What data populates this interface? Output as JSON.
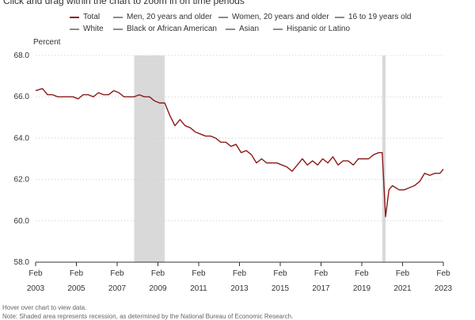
{
  "instruction": "Click and drag within the chart to zoom in on time periods",
  "legend": [
    {
      "label": "Total",
      "color": "#8b1a1a",
      "active": true
    },
    {
      "label": "Men, 20 years and older",
      "color": "#8c8c8c",
      "active": false
    },
    {
      "label": "Women, 20 years and older",
      "color": "#8c8c8c",
      "active": false
    },
    {
      "label": "16 to 19 years old",
      "color": "#8c8c8c",
      "active": false
    },
    {
      "label": "White",
      "color": "#8c8c8c",
      "active": false
    },
    {
      "label": "Black or African American",
      "color": "#8c8c8c",
      "active": false
    },
    {
      "label": "Asian",
      "color": "#8c8c8c",
      "active": false
    },
    {
      "label": "Hispanic or Latino",
      "color": "#8c8c8c",
      "active": false
    }
  ],
  "notes": {
    "hover": "Hover over chart to view data.",
    "recession": "Note: Shaded area represents recession, as determined by the National Bureau of Economic Research."
  },
  "colors": {
    "series": "#8b1a1a",
    "recession": "#d9d9d9",
    "axis": "#333333",
    "grid": "#cccccc",
    "text": "#333333"
  },
  "chart_data": {
    "type": "line",
    "ylabel": "Percent",
    "xlabel": "",
    "ylim": [
      58.0,
      68.0
    ],
    "yticks": [
      "58.0",
      "60.0",
      "62.0",
      "64.0",
      "66.0",
      "68.0"
    ],
    "xlim": [
      "2003-02",
      "2023-02"
    ],
    "xticks": [
      {
        "month": "Feb",
        "year": "2003"
      },
      {
        "month": "Feb",
        "year": "2005"
      },
      {
        "month": "Feb",
        "year": "2007"
      },
      {
        "month": "Feb",
        "year": "2009"
      },
      {
        "month": "Feb",
        "year": "2011"
      },
      {
        "month": "Feb",
        "year": "2013"
      },
      {
        "month": "Feb",
        "year": "2015"
      },
      {
        "month": "Feb",
        "year": "2017"
      },
      {
        "month": "Feb",
        "year": "2019"
      },
      {
        "month": "Feb",
        "year": "2021"
      },
      {
        "month": "Feb",
        "year": "2023"
      }
    ],
    "grid": "horizontal dotted",
    "recessions": [
      {
        "start": "2007-12",
        "end": "2009-06"
      },
      {
        "start": "2020-02",
        "end": "2020-04"
      }
    ],
    "series": [
      {
        "name": "Total",
        "points": [
          [
            "2003-02",
            66.3
          ],
          [
            "2003-06",
            66.4
          ],
          [
            "2003-09",
            66.1
          ],
          [
            "2003-12",
            66.1
          ],
          [
            "2004-03",
            66.0
          ],
          [
            "2004-06",
            66.0
          ],
          [
            "2004-09",
            66.0
          ],
          [
            "2004-12",
            66.0
          ],
          [
            "2005-03",
            65.9
          ],
          [
            "2005-06",
            66.1
          ],
          [
            "2005-09",
            66.1
          ],
          [
            "2005-12",
            66.0
          ],
          [
            "2006-03",
            66.2
          ],
          [
            "2006-06",
            66.1
          ],
          [
            "2006-09",
            66.1
          ],
          [
            "2006-12",
            66.3
          ],
          [
            "2007-03",
            66.2
          ],
          [
            "2007-06",
            66.0
          ],
          [
            "2007-09",
            66.0
          ],
          [
            "2007-12",
            66.0
          ],
          [
            "2008-03",
            66.1
          ],
          [
            "2008-06",
            66.0
          ],
          [
            "2008-09",
            66.0
          ],
          [
            "2008-12",
            65.8
          ],
          [
            "2009-03",
            65.7
          ],
          [
            "2009-06",
            65.7
          ],
          [
            "2009-09",
            65.1
          ],
          [
            "2009-12",
            64.6
          ],
          [
            "2010-03",
            64.9
          ],
          [
            "2010-06",
            64.6
          ],
          [
            "2010-09",
            64.5
          ],
          [
            "2010-12",
            64.3
          ],
          [
            "2011-03",
            64.2
          ],
          [
            "2011-06",
            64.1
          ],
          [
            "2011-09",
            64.1
          ],
          [
            "2011-12",
            64.0
          ],
          [
            "2012-03",
            63.8
          ],
          [
            "2012-06",
            63.8
          ],
          [
            "2012-09",
            63.6
          ],
          [
            "2012-12",
            63.7
          ],
          [
            "2013-03",
            63.3
          ],
          [
            "2013-06",
            63.4
          ],
          [
            "2013-09",
            63.2
          ],
          [
            "2013-12",
            62.8
          ],
          [
            "2014-03",
            63.0
          ],
          [
            "2014-06",
            62.8
          ],
          [
            "2014-09",
            62.8
          ],
          [
            "2014-12",
            62.8
          ],
          [
            "2015-03",
            62.7
          ],
          [
            "2015-06",
            62.6
          ],
          [
            "2015-09",
            62.4
          ],
          [
            "2015-12",
            62.7
          ],
          [
            "2016-03",
            63.0
          ],
          [
            "2016-06",
            62.7
          ],
          [
            "2016-09",
            62.9
          ],
          [
            "2016-12",
            62.7
          ],
          [
            "2017-03",
            63.0
          ],
          [
            "2017-06",
            62.8
          ],
          [
            "2017-09",
            63.1
          ],
          [
            "2017-12",
            62.7
          ],
          [
            "2018-03",
            62.9
          ],
          [
            "2018-06",
            62.9
          ],
          [
            "2018-09",
            62.7
          ],
          [
            "2018-12",
            63.0
          ],
          [
            "2019-03",
            63.0
          ],
          [
            "2019-06",
            63.0
          ],
          [
            "2019-09",
            63.2
          ],
          [
            "2019-12",
            63.3
          ],
          [
            "2020-02",
            63.3
          ],
          [
            "2020-04",
            60.2
          ],
          [
            "2020-06",
            61.5
          ],
          [
            "2020-08",
            61.7
          ],
          [
            "2020-10",
            61.6
          ],
          [
            "2020-12",
            61.5
          ],
          [
            "2021-03",
            61.5
          ],
          [
            "2021-06",
            61.6
          ],
          [
            "2021-09",
            61.7
          ],
          [
            "2021-12",
            61.9
          ],
          [
            "2022-03",
            62.3
          ],
          [
            "2022-06",
            62.2
          ],
          [
            "2022-09",
            62.3
          ],
          [
            "2022-12",
            62.3
          ],
          [
            "2023-02",
            62.5
          ]
        ]
      }
    ]
  }
}
